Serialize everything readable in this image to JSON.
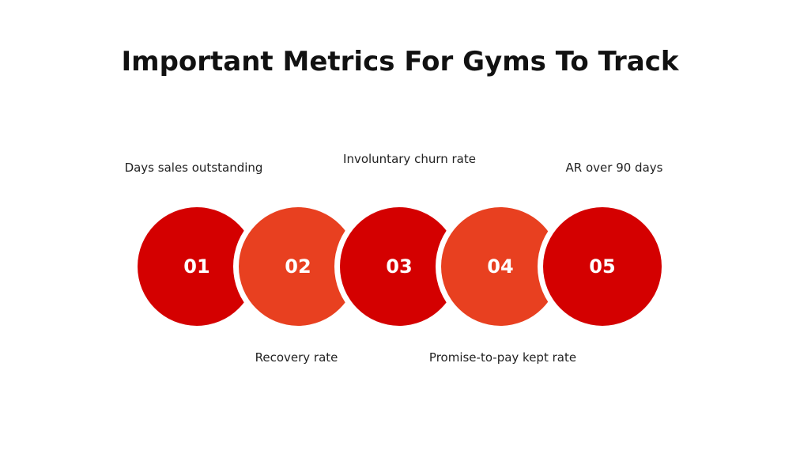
{
  "title": "Important Metrics For Gyms To Track",
  "colors": {
    "dark_red": "#d40000",
    "orange_red": "#e84020",
    "text": "#222222"
  },
  "steps": [
    {
      "number": "01",
      "label": "Days sales outstanding",
      "color": "#d40000"
    },
    {
      "number": "02",
      "label": "Recovery rate",
      "color": "#e84020"
    },
    {
      "number": "03",
      "label": "Involuntary churn rate",
      "color": "#d40000"
    },
    {
      "number": "04",
      "label": "Promise-to-pay kept rate",
      "color": "#e84020"
    },
    {
      "number": "05",
      "label": "AR over 90 days",
      "color": "#d40000"
    }
  ]
}
